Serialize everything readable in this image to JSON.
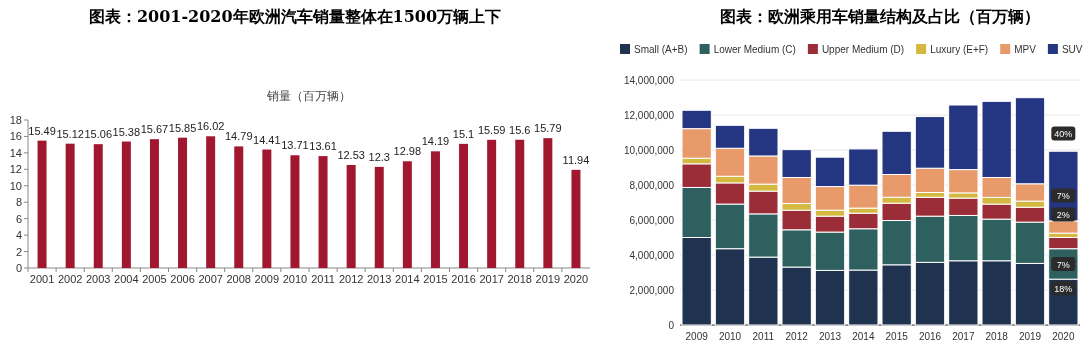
{
  "chart_data": [
    {
      "type": "bar",
      "title": "图表：2001-2020年欧洲汽车销量整体在1500万辆上下",
      "subtitle": "销量（百万辆）",
      "categories": [
        "2001",
        "2002",
        "2003",
        "2004",
        "2005",
        "2006",
        "2007",
        "2008",
        "2009",
        "2010",
        "2011",
        "2012",
        "2013",
        "2014",
        "2015",
        "2016",
        "2017",
        "2018",
        "2019",
        "2020"
      ],
      "values": [
        15.49,
        15.12,
        15.06,
        15.38,
        15.67,
        15.85,
        16.02,
        14.79,
        14.41,
        13.71,
        13.61,
        12.53,
        12.3,
        12.98,
        14.19,
        15.1,
        15.59,
        15.6,
        15.79,
        11.94
      ],
      "color": "#a0172f",
      "data_labels": true,
      "ylim": [
        0,
        18
      ],
      "yticks": [
        0,
        2,
        4,
        6,
        8,
        10,
        12,
        14,
        16,
        18
      ],
      "grid": false,
      "legend": false
    },
    {
      "type": "bar",
      "title": "图表：欧洲乘用车销量结构及占比（百万辆）",
      "stacked": true,
      "legend": "top",
      "grid": "y",
      "categories": [
        "2009",
        "2010",
        "2011",
        "2012",
        "2013",
        "2014",
        "2015",
        "2016",
        "2017",
        "2018",
        "2019",
        "2020"
      ],
      "series": [
        {
          "name": "Small (A+B)",
          "color": "#1f3350",
          "values": [
            5000000,
            4360000,
            3880000,
            3310000,
            3120000,
            3140000,
            3440000,
            3580000,
            3670000,
            3670000,
            3520000,
            2620000
          ]
        },
        {
          "name": "Lower Medium (C)",
          "color": "#2f6060",
          "values": [
            2860000,
            2550000,
            2470000,
            2130000,
            2190000,
            2360000,
            2530000,
            2640000,
            2590000,
            2380000,
            2360000,
            1740000
          ]
        },
        {
          "name": "Upper Medium (D)",
          "color": "#9b2d38",
          "values": [
            1350000,
            1210000,
            1300000,
            1120000,
            910000,
            890000,
            990000,
            1080000,
            990000,
            860000,
            850000,
            640000
          ]
        },
        {
          "name": "Luxury (E+F)",
          "color": "#d4b83f",
          "values": [
            320000,
            380000,
            400000,
            380000,
            340000,
            290000,
            340000,
            270000,
            300000,
            380000,
            350000,
            250000
          ]
        },
        {
          "name": "MPV",
          "color": "#e99a6b",
          "values": [
            1690000,
            1600000,
            1610000,
            1490000,
            1350000,
            1310000,
            1300000,
            1390000,
            1330000,
            1140000,
            990000,
            700000
          ]
        },
        {
          "name": "SUV",
          "color": "#243582",
          "values": [
            1050000,
            1310000,
            1580000,
            1590000,
            1680000,
            2070000,
            2470000,
            2950000,
            3690000,
            4350000,
            4920000,
            3980000
          ]
        }
      ],
      "ylim": [
        0,
        14000000
      ],
      "yticks": [
        {
          "value": 0,
          "label": "0"
        },
        {
          "value": 2000000,
          "label": "2,000,000"
        },
        {
          "value": 4000000,
          "label": "4,000,000"
        },
        {
          "value": 6000000,
          "label": "6,000,000"
        },
        {
          "value": 8000000,
          "label": "8,000,000"
        },
        {
          "value": 10000000,
          "label": "10,000,000"
        },
        {
          "value": 12000000,
          "label": "12,000,000"
        },
        {
          "value": 14000000,
          "label": "14,000,000"
        }
      ],
      "annotations": [
        {
          "text": "40%",
          "x": "2020",
          "y": 10940000
        },
        {
          "text": "7%",
          "x": "2020",
          "y": 7400000
        },
        {
          "text": "2%",
          "x": "2020",
          "y": 6320000
        },
        {
          "text": "7%",
          "x": "2020",
          "y": 3480000
        },
        {
          "text": "18%",
          "x": "2020",
          "y": 2100000
        }
      ]
    }
  ]
}
